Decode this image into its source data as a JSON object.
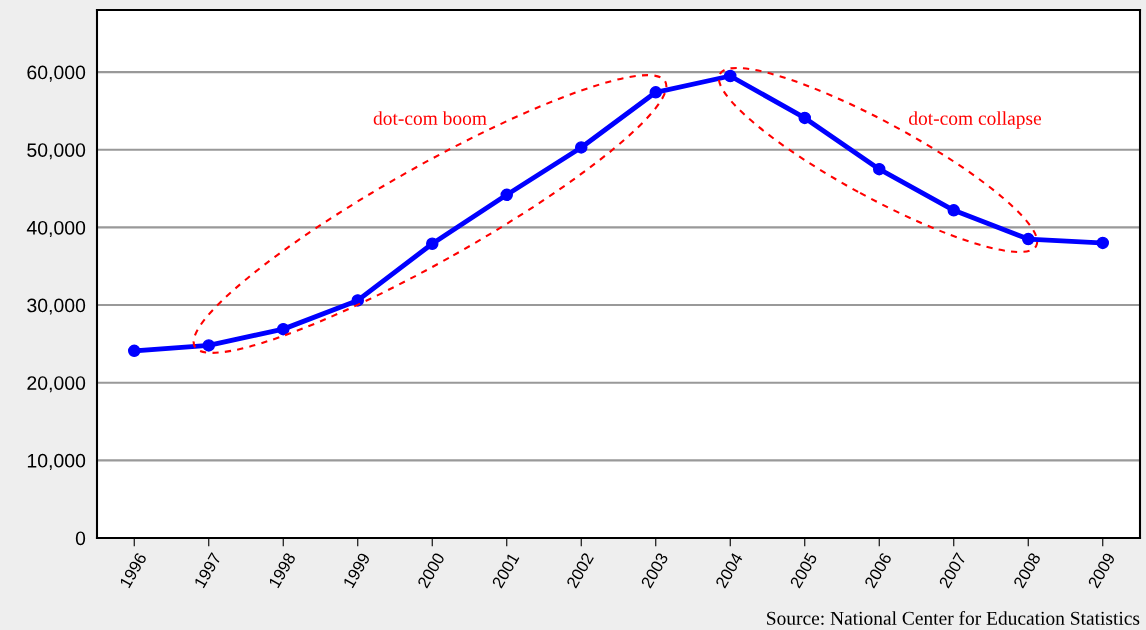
{
  "chart_data": {
    "type": "line",
    "categories": [
      "1996",
      "1997",
      "1998",
      "1999",
      "2000",
      "2001",
      "2002",
      "2003",
      "2004",
      "2005",
      "2006",
      "2007",
      "2008",
      "2009"
    ],
    "series": [
      {
        "color": "#0000ff",
        "values": [
          24100,
          24800,
          26900,
          30600,
          37900,
          44200,
          50300,
          57400,
          59500,
          54100,
          47500,
          42200,
          38500,
          38000
        ]
      }
    ],
    "ylim": [
      0,
      68000
    ],
    "yticks": [
      {
        "value": 0,
        "label": "0"
      },
      {
        "value": 10000,
        "label": "10,000"
      },
      {
        "value": 20000,
        "label": "20,000"
      },
      {
        "value": 30000,
        "label": "30,000"
      },
      {
        "value": 40000,
        "label": "40,000"
      },
      {
        "value": 50000,
        "label": "50,000"
      },
      {
        "value": 60000,
        "label": "60,000"
      }
    ],
    "grid": "y",
    "marker": "circle",
    "line_style": "solid",
    "annotations": [
      "dot-com boom",
      "dot-com collapse",
      "Source: National Center for Education Statistics"
    ]
  }
}
